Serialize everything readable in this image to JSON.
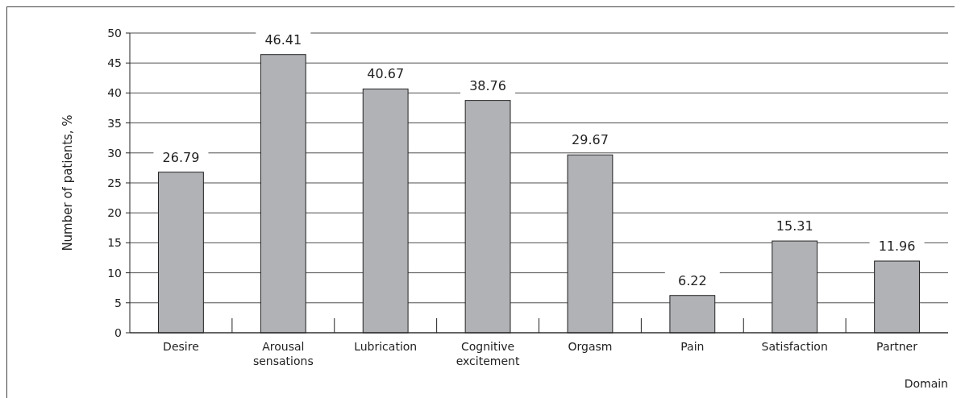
{
  "chart_data": {
    "type": "bar",
    "xlabel": "Domain",
    "ylabel": "Number of patients, %",
    "categories": [
      "Desire",
      "Arousal\nsensations",
      "Lubrication",
      "Cognitive\nexcitement",
      "Orgasm",
      "Pain",
      "Satisfaction",
      "Partner"
    ],
    "values": [
      26.79,
      46.41,
      40.67,
      38.76,
      29.67,
      6.22,
      15.31,
      11.96
    ],
    "color": "#b1b2b6",
    "ylim": [
      0,
      50
    ],
    "yticks": [
      0,
      5,
      10,
      15,
      20,
      25,
      30,
      35,
      40,
      45,
      50
    ],
    "grid": "y",
    "data_labels": true
  }
}
